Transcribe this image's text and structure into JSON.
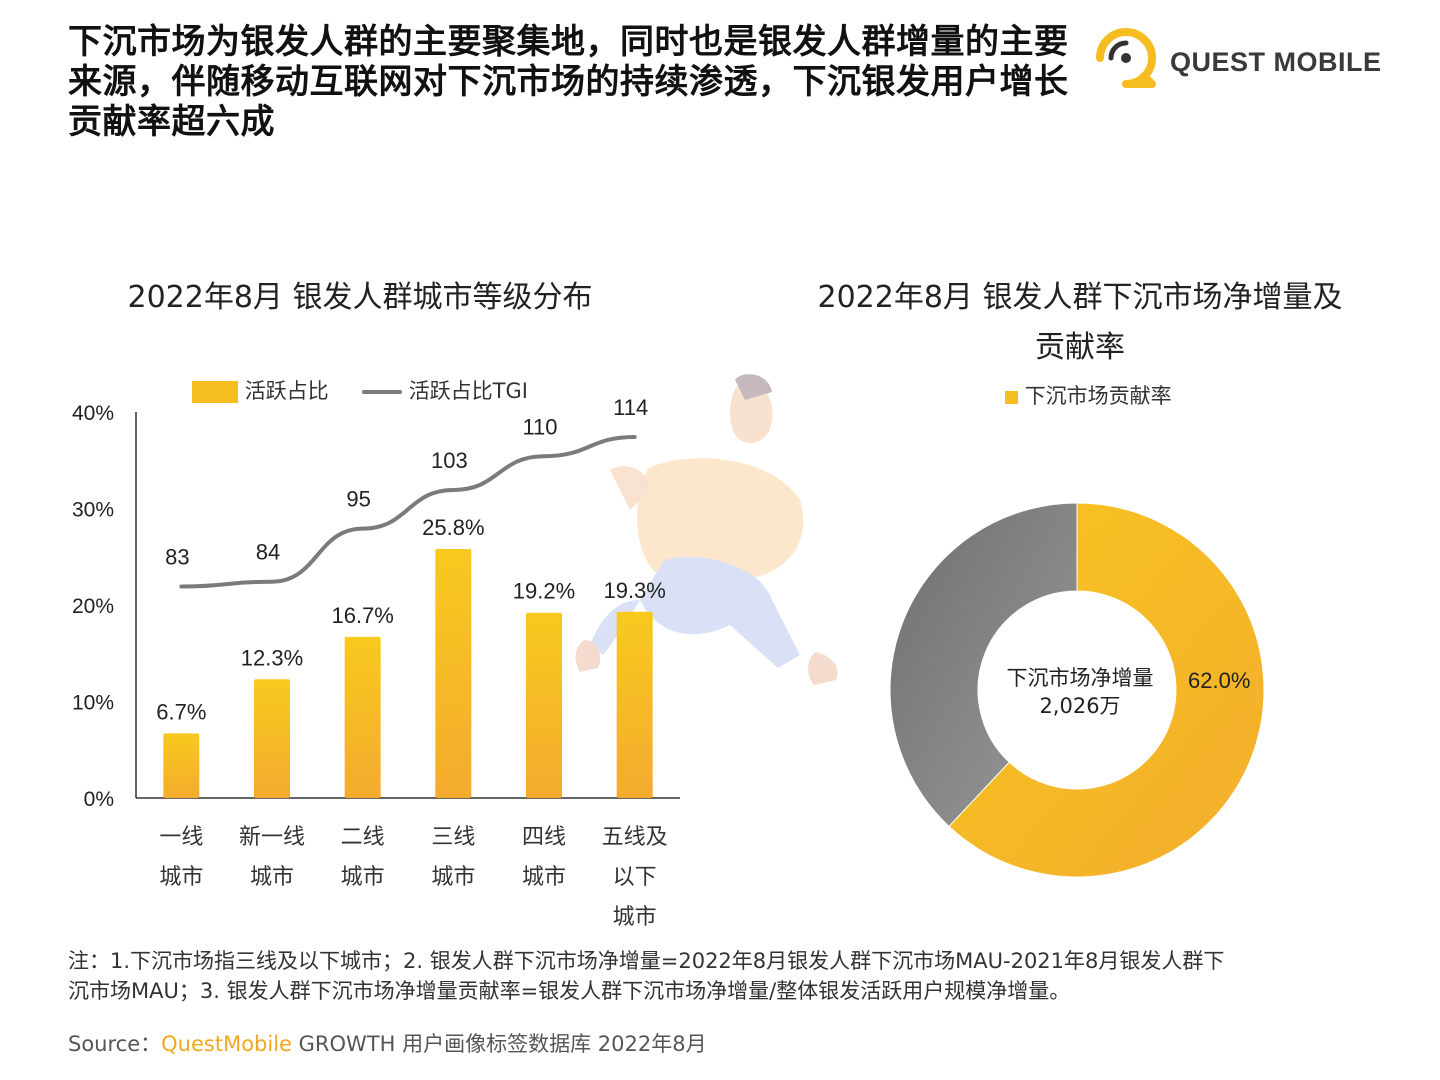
{
  "headline": "下沉市场为银发人群的主要聚集地，同时也是银发人群增量的主要来源，伴随移动互联网对下沉市场的持续渗透，下沉银发用户增长贡献率超六成",
  "logo": {
    "text": "QUEST MOBILE",
    "icon": "quest-mobile-logo-icon"
  },
  "colors": {
    "accent": "#f5bd1f",
    "line": "#7b7b7b",
    "gray": "#8a8a8a"
  },
  "chart_data": [
    {
      "type": "bar",
      "title": "2022年8月 银发人群城市等级分布",
      "categories": [
        [
          "一线",
          "城市"
        ],
        [
          "新一线",
          "城市"
        ],
        [
          "二线",
          "城市"
        ],
        [
          "三线",
          "城市"
        ],
        [
          "四线",
          "城市"
        ],
        [
          "五线及",
          "以下",
          "城市"
        ]
      ],
      "yticks": [
        "0%",
        "10%",
        "20%",
        "30%",
        "40%"
      ],
      "ylim": [
        0,
        40
      ],
      "series": [
        {
          "name": "活跃占比",
          "type": "bar",
          "values": [
            6.7,
            12.3,
            16.7,
            25.8,
            19.2,
            19.3
          ],
          "labels": [
            "6.7%",
            "12.3%",
            "16.7%",
            "25.8%",
            "19.2%",
            "19.3%"
          ]
        },
        {
          "name": "活跃占比TGI",
          "type": "line",
          "values": [
            83,
            84,
            95,
            103,
            110,
            114
          ],
          "labels": [
            "83",
            "84",
            "95",
            "103",
            "110",
            "114"
          ]
        }
      ],
      "legend": "top"
    },
    {
      "type": "pie",
      "title_lines": [
        "2022年8月 银发人群下沉市场净增量及",
        "贡献率"
      ],
      "legend_label": "下沉市场贡献率",
      "slices": [
        {
          "name": "下沉市场贡献率",
          "value": 62.0,
          "label": "62.0%"
        },
        {
          "name": "",
          "value": 38.0
        }
      ],
      "center_label_lines": [
        "下沉市场净增量",
        "2,026万"
      ]
    }
  ],
  "note_lines": [
    "注：1.下沉市场指三线及以下城市；2. 银发人群下沉市场净增量=2022年8月银发人群下沉市场MAU-2021年8月银发人群下",
    "沉市场MAU；3. 银发人群下沉市场净增量贡献率=银发人群下沉市场净增量/整体银发活跃用户规模净增量。"
  ],
  "source": {
    "prefix": "Source：",
    "brand": "QuestMobile",
    "rest": " GROWTH 用户画像标签数据库 2022年8月"
  }
}
